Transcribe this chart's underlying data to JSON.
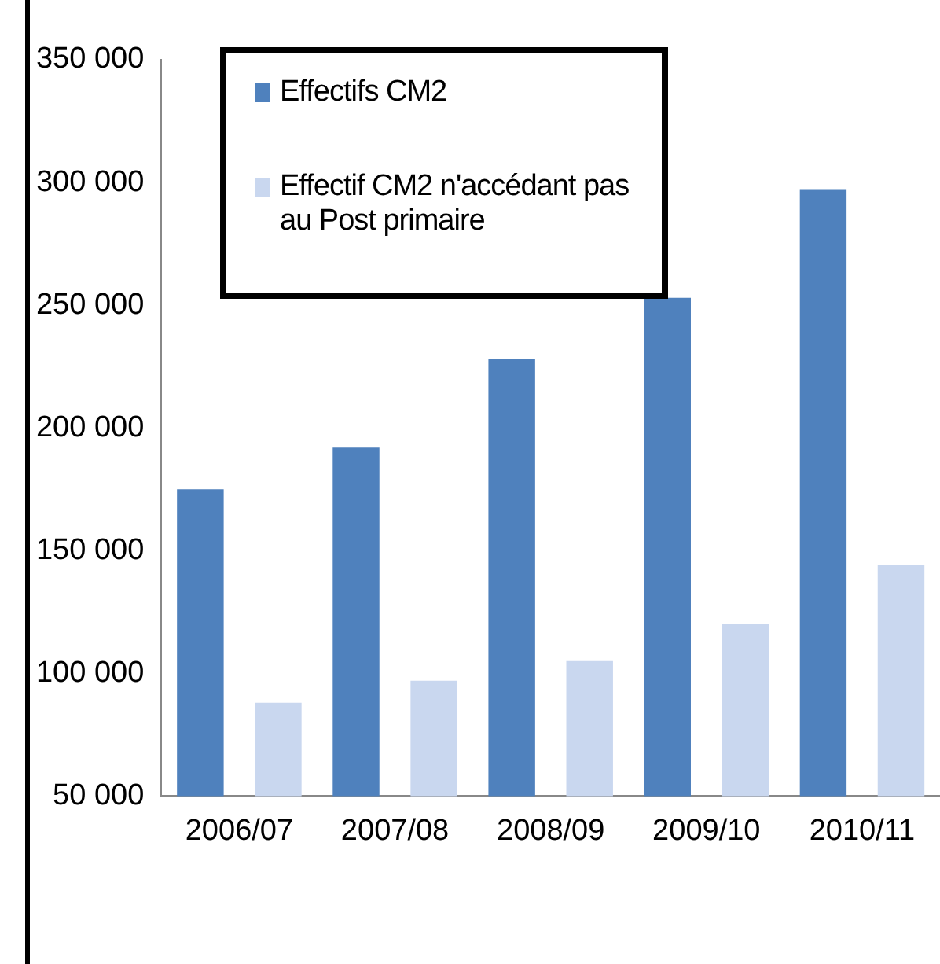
{
  "chart_data": {
    "type": "bar",
    "categories": [
      "2006/07",
      "2007/08",
      "2008/09",
      "2009/10",
      "2010/11"
    ],
    "series": [
      {
        "name": "Effectifs CM2",
        "color": "#4f81bd",
        "values": [
          175000,
          192000,
          228000,
          253000,
          297000
        ]
      },
      {
        "name": "Effectif CM2 n'accédant pas au Post primaire",
        "color": "#c9d7ef",
        "values": [
          88000,
          97000,
          105000,
          120000,
          144000
        ]
      }
    ],
    "ylim": [
      50000,
      350000
    ],
    "yticks": [
      {
        "value": 50000,
        "label": "50 000"
      },
      {
        "value": 100000,
        "label": "100 000"
      },
      {
        "value": 150000,
        "label": "150 000"
      },
      {
        "value": 200000,
        "label": "200 000"
      },
      {
        "value": 250000,
        "label": "250 000"
      },
      {
        "value": 300000,
        "label": "300 000"
      },
      {
        "value": 350000,
        "label": "350 000"
      }
    ],
    "grid": false,
    "legend": "top left"
  }
}
